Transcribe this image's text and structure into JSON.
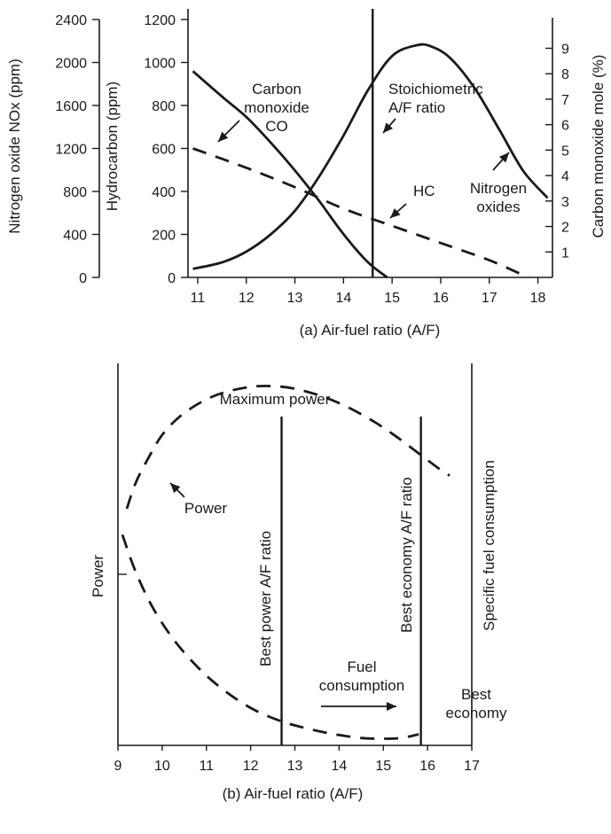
{
  "chart_data": [
    {
      "id": "a",
      "type": "line",
      "caption": "(a) Air-fuel ratio (A/F)",
      "xlim": [
        10.8,
        18.3
      ],
      "x_ticks": [
        11,
        12,
        13,
        14,
        15,
        16,
        17,
        18
      ],
      "axes": [
        {
          "label": "Nitrogen oxide NOx (ppm)",
          "ylim": [
            0,
            2400
          ],
          "ticks": [
            0,
            400,
            800,
            1200,
            1600,
            2000,
            2400
          ]
        },
        {
          "label": "Hydrocarbon (ppm)",
          "ylim": [
            0,
            1200
          ],
          "ticks": [
            0,
            200,
            400,
            600,
            800,
            1000,
            1200
          ]
        },
        {
          "label": "Carbon monoxide mole (%)",
          "ylim": [
            0,
            10.2
          ],
          "ticks": [
            1,
            2,
            3,
            4,
            5,
            6,
            7,
            8,
            9
          ]
        }
      ],
      "series": [
        {
          "key": "co",
          "axis": 2,
          "style": "solid",
          "x": [
            10.9,
            11.5,
            12.0,
            12.5,
            13.0,
            13.5,
            14.0,
            14.5,
            14.9
          ],
          "y": [
            8.1,
            7.1,
            6.3,
            5.3,
            4.2,
            3.0,
            1.7,
            0.6,
            0.0
          ]
        },
        {
          "key": "hc",
          "axis": 1,
          "style": "dashed",
          "x": [
            10.9,
            12.0,
            13.0,
            14.0,
            15.0,
            16.0,
            17.0,
            17.8
          ],
          "y": [
            600,
            510,
            420,
            320,
            240,
            160,
            80,
            0
          ]
        },
        {
          "key": "nox",
          "axis": 0,
          "style": "solid",
          "x": [
            10.9,
            11.5,
            12.0,
            12.5,
            13.0,
            13.5,
            14.0,
            14.5,
            15.0,
            15.5,
            15.8,
            16.2,
            16.7,
            17.2,
            17.7,
            18.2
          ],
          "y": [
            80,
            140,
            240,
            400,
            620,
            940,
            1320,
            1740,
            2060,
            2160,
            2150,
            2040,
            1760,
            1380,
            990,
            740
          ]
        }
      ],
      "markers": [
        {
          "x": 14.6
        }
      ],
      "annotations": [
        {
          "key": "co_label",
          "lines": [
            "Carbon",
            "monoxide",
            "CO"
          ]
        },
        {
          "key": "stoich_label",
          "lines": [
            "Stoichiometric",
            "A/F ratio"
          ]
        },
        {
          "key": "hc_label",
          "lines": [
            "HC"
          ]
        },
        {
          "key": "nox_label",
          "lines": [
            "Nitrogen",
            "oxides"
          ]
        }
      ]
    },
    {
      "id": "b",
      "type": "line",
      "caption": "(b) Air-fuel ratio (A/F)",
      "xlim": [
        9,
        17
      ],
      "x_ticks": [
        9,
        10,
        11,
        12,
        13,
        14,
        15,
        16,
        17
      ],
      "ylabel": "Power",
      "series": [
        {
          "key": "power",
          "style": "dashed",
          "x": [
            9.2,
            9.4,
            9.7,
            10.0,
            10.4,
            10.9,
            11.4,
            12.0,
            12.5,
            13.0,
            13.6,
            14.2,
            14.8,
            15.3,
            15.8,
            16.3,
            16.5
          ],
          "y": [
            0.64,
            0.71,
            0.78,
            0.84,
            0.89,
            0.93,
            0.955,
            0.97,
            0.972,
            0.965,
            0.945,
            0.915,
            0.875,
            0.835,
            0.79,
            0.745,
            0.73
          ]
        },
        {
          "key": "fuel",
          "style": "dashed",
          "x": [
            9.1,
            9.4,
            9.8,
            10.3,
            10.9,
            11.5,
            12.1,
            12.7,
            13.3,
            13.9,
            14.5,
            15.0,
            15.4,
            15.8
          ],
          "y": [
            0.57,
            0.47,
            0.37,
            0.28,
            0.2,
            0.14,
            0.095,
            0.065,
            0.045,
            0.03,
            0.02,
            0.018,
            0.02,
            0.03
          ]
        }
      ],
      "markers": [
        {
          "x": 12.7,
          "label": "Best power A/F ratio"
        },
        {
          "x": 15.85,
          "label": "Best economy A/F ratio"
        },
        {
          "x": 17.0,
          "label": "Specific fuel consumption"
        }
      ],
      "annotations": [
        {
          "key": "max_power",
          "lines": [
            "Maximum power"
          ]
        },
        {
          "key": "power_label",
          "lines": [
            "Power"
          ]
        },
        {
          "key": "fuel_label",
          "lines": [
            "Fuel",
            "consumption"
          ]
        },
        {
          "key": "best_econ",
          "lines": [
            "Best",
            "economy"
          ]
        }
      ]
    }
  ]
}
